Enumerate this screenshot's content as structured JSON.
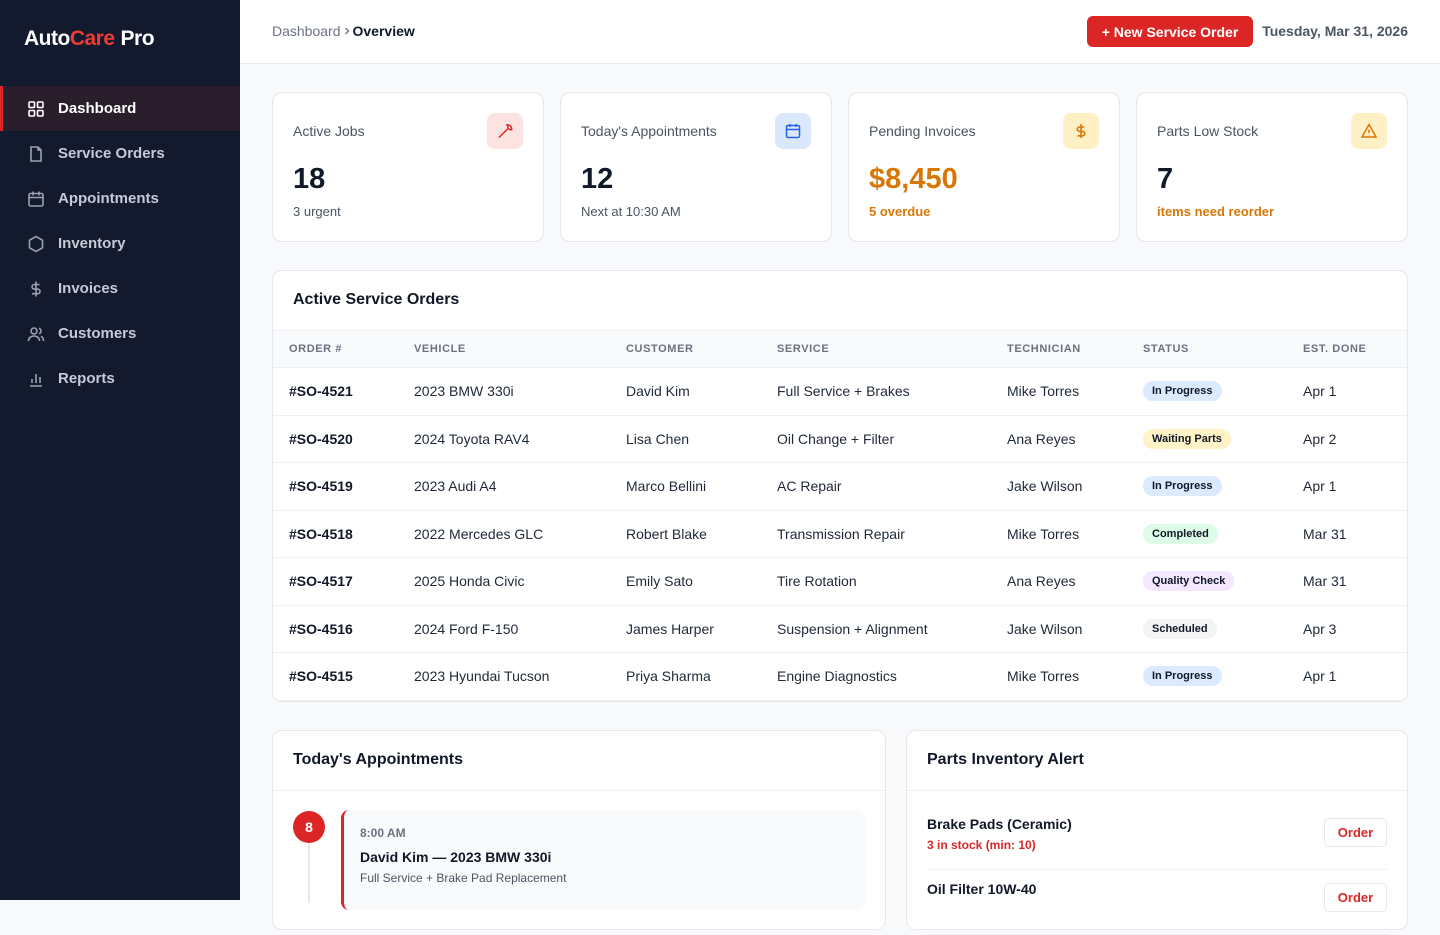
{
  "brand": {
    "first": "Auto",
    "accent": "Care",
    "last": "Pro"
  },
  "nav": [
    "Dashboard",
    "Service Orders",
    "Appointments",
    "Inventory",
    "Invoices",
    "Customers",
    "Reports"
  ],
  "header": {
    "breadcrumb": [
      "Dashboard",
      "Overview"
    ],
    "button": "+ New Service Order",
    "date": "Tuesday, Mar 31, 2026"
  },
  "stats": [
    {
      "label": "Active Jobs",
      "value": "18",
      "note": "3 urgent"
    },
    {
      "label": "Today's Appointments",
      "value": "12",
      "note": "Next at 10:30 AM"
    },
    {
      "label": "Pending Invoices",
      "value": "$8,450",
      "note": "5 overdue"
    },
    {
      "label": "Parts Low Stock",
      "value": "7",
      "note": "items need reorder"
    }
  ],
  "orders": {
    "title": "Active Service Orders",
    "columns": [
      "ORDER #",
      "VEHICLE",
      "CUSTOMER",
      "SERVICE",
      "TECHNICIAN",
      "STATUS",
      "EST. DONE"
    ],
    "rows": [
      [
        "#SO-4521",
        "2023 BMW 330i",
        "David Kim",
        "Full Service + Brakes",
        "Mike Torres",
        "In Progress",
        "Apr 1"
      ],
      [
        "#SO-4520",
        "2024 Toyota RAV4",
        "Lisa Chen",
        "Oil Change + Filter",
        "Ana Reyes",
        "Waiting Parts",
        "Apr 2"
      ],
      [
        "#SO-4519",
        "2023 Audi A4",
        "Marco Bellini",
        "AC Repair",
        "Jake Wilson",
        "In Progress",
        "Apr 1"
      ],
      [
        "#SO-4518",
        "2022 Mercedes GLC",
        "Robert Blake",
        "Transmission Repair",
        "Mike Torres",
        "Completed",
        "Mar 31"
      ],
      [
        "#SO-4517",
        "2025 Honda Civic",
        "Emily Sato",
        "Tire Rotation",
        "Ana Reyes",
        "Quality Check",
        "Mar 31"
      ],
      [
        "#SO-4516",
        "2024 Ford F-150",
        "James Harper",
        "Suspension + Alignment",
        "Jake Wilson",
        "Scheduled",
        "Apr 3"
      ],
      [
        "#SO-4515",
        "2023 Hyundai Tucson",
        "Priya Sharma",
        "Engine Diagnostics",
        "Mike Torres",
        "In Progress",
        "Apr 1"
      ]
    ],
    "status_colors": [
      "blue",
      "amber",
      "blue",
      "green",
      "purple",
      "gray",
      "blue"
    ]
  },
  "appointments": {
    "title": "Today's Appointments",
    "items": [
      {
        "hour": "8",
        "time": "8:00 AM",
        "title": "David Kim — 2023 BMW 330i",
        "detail": "Full Service + Brake Pad Replacement"
      }
    ]
  },
  "parts": {
    "title": "Parts Inventory Alert",
    "items": [
      {
        "name": "Brake Pads (Ceramic)",
        "stock": "3 in stock (min: 10)",
        "action": "Order"
      },
      {
        "name": "Oil Filter 10W-40",
        "stock": "",
        "action": "Order"
      }
    ]
  }
}
